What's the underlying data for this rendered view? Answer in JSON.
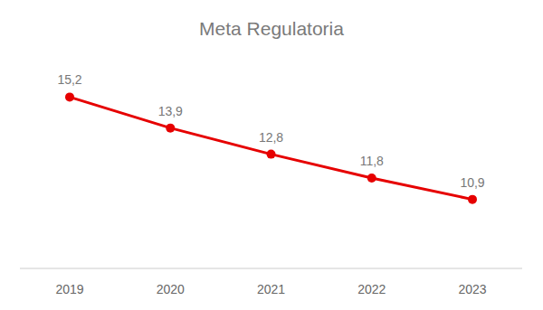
{
  "chart_data": {
    "type": "line",
    "title": "Meta Regulatoria",
    "categories": [
      "2019",
      "2020",
      "2021",
      "2022",
      "2023"
    ],
    "values": [
      15.2,
      13.9,
      12.8,
      11.8,
      10.9
    ],
    "value_labels": [
      "15,2",
      "13,9",
      "12,8",
      "11,8",
      "10,9"
    ],
    "color": "#e60000",
    "ylim": [
      8,
      17
    ],
    "grid": false,
    "data_labels": true,
    "tick_labels": "x",
    "marker": "circle",
    "line_style": "solid"
  }
}
